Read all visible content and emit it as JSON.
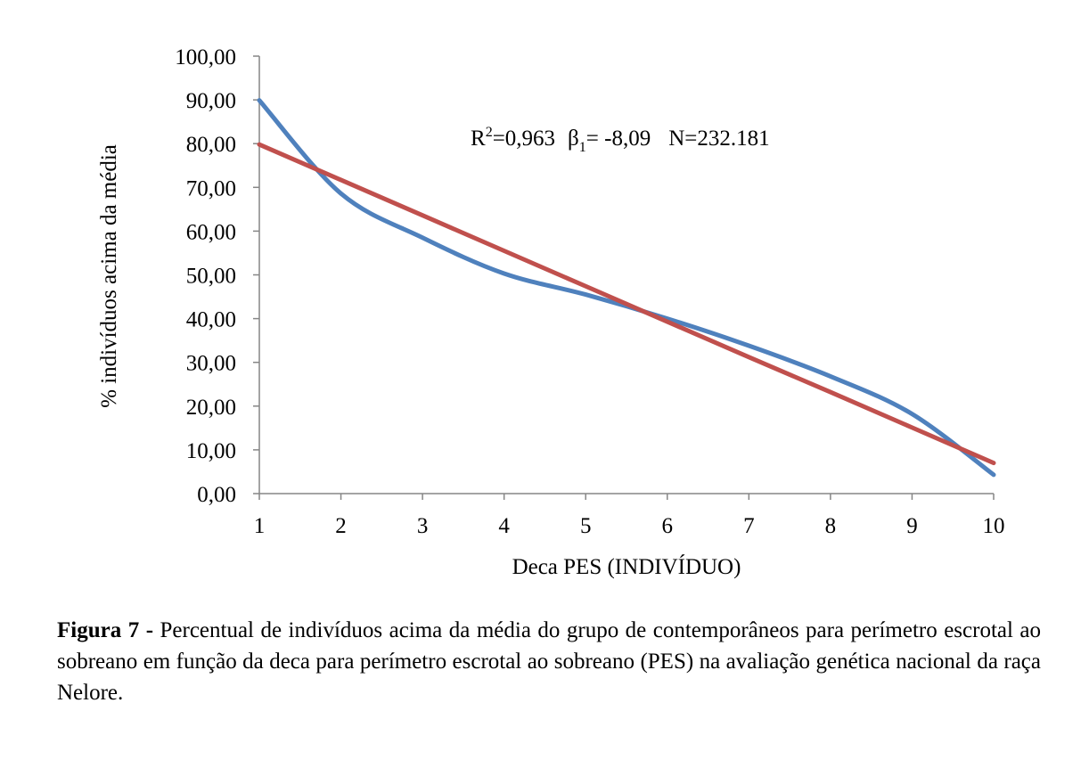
{
  "chart_data": {
    "type": "line",
    "x": [
      1,
      2,
      3,
      4,
      5,
      6,
      7,
      8,
      9,
      10
    ],
    "xlabel": "Deca PES (INDIVÍDUO)",
    "ylabel": "% indivíduos acima da média",
    "xlim": [
      1,
      10
    ],
    "ylim": [
      0,
      100
    ],
    "x_ticks": [
      "1",
      "2",
      "3",
      "4",
      "5",
      "6",
      "7",
      "8",
      "9",
      "10"
    ],
    "y_ticks": [
      "0,00",
      "10,00",
      "20,00",
      "30,00",
      "40,00",
      "50,00",
      "60,00",
      "70,00",
      "80,00",
      "90,00",
      "100,00"
    ],
    "grid": false,
    "legend": "none",
    "series": [
      {
        "values": [
          89.9,
          68.6,
          58.5,
          50.3,
          45.5,
          40.0,
          33.8,
          26.8,
          18.2,
          4.3
        ],
        "color": "#4f81bd",
        "smooth": true
      },
      {
        "values": [
          79.8,
          71.7,
          63.6,
          55.5,
          47.4,
          39.3,
          31.2,
          23.2,
          15.1,
          7.0
        ],
        "color": "#c0504d",
        "smooth": false
      }
    ],
    "annotation": {
      "r2_label": "R",
      "r2_sup": "2",
      "r2_value": "=0,963",
      "beta_label": "β",
      "beta_sub": "1",
      "beta_value": "= -8,09",
      "n_text": "N=232.181"
    }
  },
  "caption": {
    "label": "Figura 7",
    "dash": "-",
    "text": "Percentual de indivíduos acima da média do grupo de contemporâneos para perímetro escrotal ao sobreano em função da deca para perímetro escrotal ao sobreano (PES) na avaliação genética nacional da raça Nelore."
  }
}
